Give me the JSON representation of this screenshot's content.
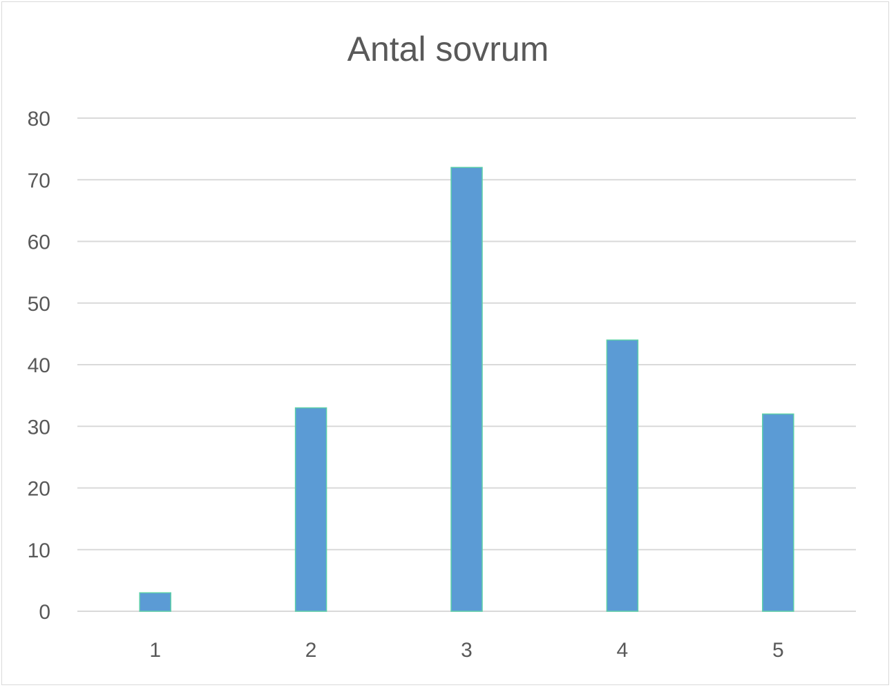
{
  "chart_data": {
    "type": "bar",
    "title": "Antal sovrum",
    "categories": [
      "1",
      "2",
      "3",
      "4",
      "5"
    ],
    "values": [
      3,
      33,
      72,
      44,
      32
    ],
    "xlabel": "",
    "ylabel": "",
    "ylim": [
      0,
      80
    ],
    "yticks": [
      0,
      10,
      20,
      30,
      40,
      50,
      60,
      70,
      80
    ],
    "grid": true,
    "legend": "none",
    "bar_color": "#5b9bd5",
    "bar_edge_color": "#5ccfa8",
    "grid_color": "#d9d9d9"
  }
}
